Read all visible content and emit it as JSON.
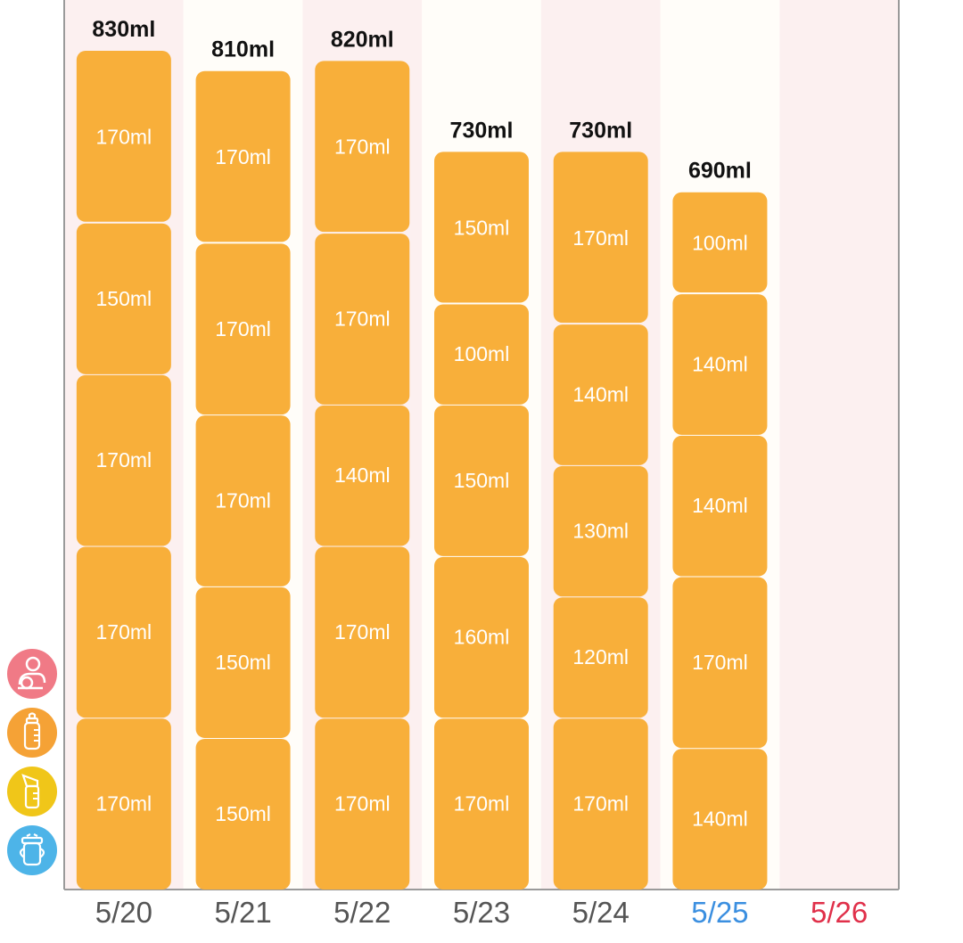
{
  "chart_data": {
    "type": "bar",
    "stacked": true,
    "unit": "ml",
    "days": [
      {
        "date": "5/20",
        "total": "830ml",
        "segments": [
          170,
          170,
          170,
          150,
          170
        ],
        "date_color": "#555555"
      },
      {
        "date": "5/21",
        "total": "810ml",
        "segments": [
          150,
          150,
          170,
          170,
          170
        ],
        "date_color": "#555555"
      },
      {
        "date": "5/22",
        "total": "820ml",
        "segments": [
          170,
          170,
          140,
          170,
          170
        ],
        "date_color": "#555555"
      },
      {
        "date": "5/23",
        "total": "730ml",
        "segments": [
          170,
          160,
          150,
          100,
          150
        ],
        "date_color": "#555555"
      },
      {
        "date": "5/24",
        "total": "730ml",
        "segments": [
          170,
          120,
          130,
          140,
          170
        ],
        "date_color": "#555555"
      },
      {
        "date": "5/25",
        "total": "690ml",
        "segments": [
          140,
          170,
          140,
          140,
          100
        ],
        "date_color": "#3b8fe0"
      },
      {
        "date": "5/26",
        "total": "",
        "segments": [],
        "date_color": "#e0304a"
      }
    ],
    "bar_color": "#f8af3a",
    "column_shading": [
      "#fcf0f0",
      "#fffdf9"
    ]
  },
  "side_icons": [
    {
      "name": "mother-baby-icon",
      "color": "#f07a86"
    },
    {
      "name": "baby-bottle-icon",
      "color": "#f5a236"
    },
    {
      "name": "breast-pump-icon",
      "color": "#f0c619"
    },
    {
      "name": "sippy-cup-icon",
      "color": "#4db4e8"
    }
  ]
}
